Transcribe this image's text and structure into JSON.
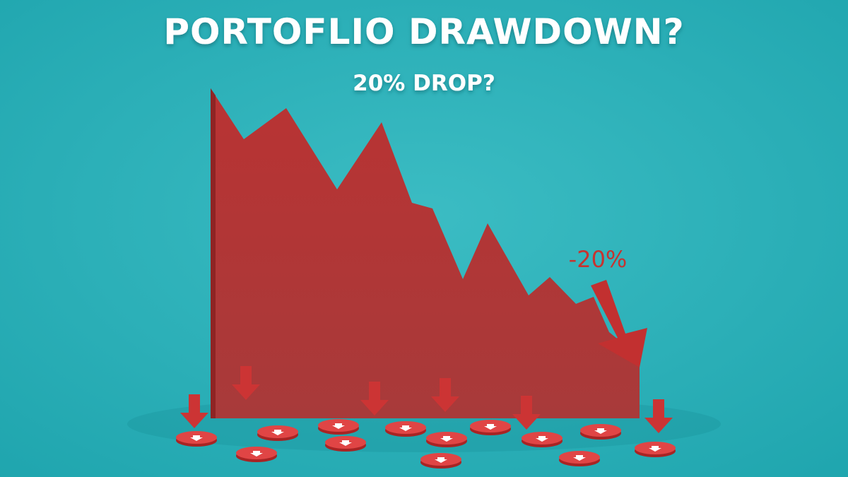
{
  "header": {
    "title": "PORTOFLIO DRAWDOWN?",
    "subtitle": "20% DROP?"
  },
  "annotation": "-20%"
}
